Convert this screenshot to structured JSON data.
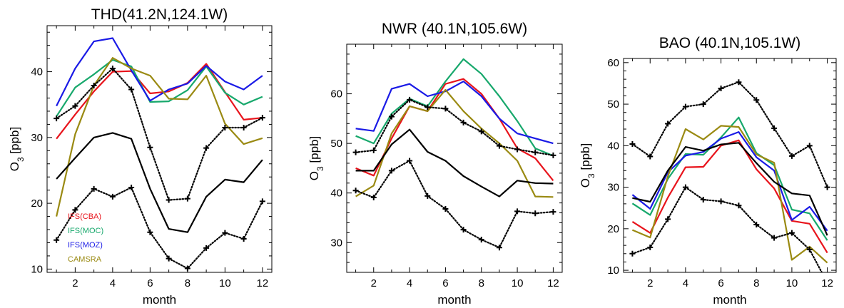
{
  "chart_data": [
    {
      "type": "line",
      "title": "THD(41.2N,124.1W)",
      "xlabel": "month",
      "ylabel": "O3 [ppb]",
      "xlim": [
        0.5,
        12.5
      ],
      "ylim": [
        9.5,
        47
      ],
      "xticks": [
        2,
        4,
        6,
        8,
        10,
        12
      ],
      "yticks": [
        10,
        20,
        30,
        40
      ],
      "x": [
        1,
        2,
        3,
        4,
        5,
        6,
        7,
        8,
        9,
        10,
        11,
        12
      ],
      "legend": [
        "IFS(CBA)",
        "IFS(MOC)",
        "IFS(MOZ)",
        "CAMSRA"
      ],
      "legend_position": "lower-left",
      "series": [
        {
          "name": "IFS(CBA)",
          "color": "#e8141c",
          "style": "solid",
          "values": [
            29.8,
            33.5,
            37,
            40,
            40.1,
            36.7,
            37,
            38.3,
            41.2,
            36.9,
            32.7,
            33
          ]
        },
        {
          "name": "IFS(MOC)",
          "color": "#17a86c",
          "style": "solid",
          "values": [
            33.2,
            37.6,
            39.6,
            41.8,
            40.8,
            35.4,
            35.5,
            37.2,
            40.8,
            36.8,
            35,
            36.2
          ]
        },
        {
          "name": "IFS(MOZ)",
          "color": "#1a1ae6",
          "style": "solid",
          "values": [
            34.8,
            40.5,
            44.6,
            45.1,
            40.2,
            35.6,
            37.3,
            38.2,
            40.9,
            38.5,
            37.3,
            39.4
          ]
        },
        {
          "name": "CAMSRA",
          "color": "#9a8a12",
          "style": "solid",
          "values": [
            18,
            30.5,
            37.9,
            42.1,
            40.5,
            39.4,
            35.9,
            35.8,
            39.4,
            32.1,
            29,
            29.9
          ]
        },
        {
          "color": "#000000",
          "style": "solid",
          "values": [
            23.7,
            26.9,
            30,
            30.7,
            29.8,
            22.2,
            16.1,
            15.6,
            21,
            23.6,
            23.2,
            26.6
          ]
        },
        {
          "color": "#000000",
          "style": "dotted",
          "marker": "plus",
          "values": [
            32.9,
            34.8,
            37.9,
            40.5,
            37.3,
            28.5,
            20.5,
            20.7,
            28.4,
            31.5,
            31.5,
            33
          ]
        },
        {
          "color": "#000000",
          "style": "dotted",
          "marker": "plus",
          "values": [
            14.4,
            19,
            22.2,
            21,
            22.4,
            15.6,
            11.6,
            10.1,
            13.2,
            15.5,
            14.6,
            20.3
          ]
        }
      ]
    },
    {
      "type": "line",
      "title": "NWR (40.1N,105.6W)",
      "xlabel": "month",
      "ylabel": "O3 [ppb]",
      "xlim": [
        0.5,
        12.5
      ],
      "ylim": [
        24,
        70
      ],
      "xticks": [
        2,
        4,
        6,
        8,
        10,
        12
      ],
      "yticks": [
        30,
        40,
        50,
        60
      ],
      "x": [
        1,
        2,
        3,
        4,
        5,
        6,
        7,
        8,
        9,
        10,
        11,
        12
      ],
      "series": [
        {
          "name": "IFS(CBA)",
          "color": "#e8141c",
          "style": "solid",
          "values": [
            45,
            43.5,
            51,
            57.5,
            56.5,
            62,
            63,
            60,
            55,
            49,
            47,
            42.5
          ]
        },
        {
          "name": "IFS(MOC)",
          "color": "#17a86c",
          "style": "solid",
          "values": [
            51.5,
            50,
            56,
            59,
            57.5,
            62.5,
            67,
            64,
            59.5,
            54.5,
            49,
            47.5
          ]
        },
        {
          "name": "IFS(MOZ)",
          "color": "#1a1ae6",
          "style": "solid",
          "values": [
            53,
            52.5,
            61,
            62,
            59.5,
            60.5,
            62.5,
            59.5,
            55,
            52,
            51,
            50
          ]
        },
        {
          "name": "CAMSRA",
          "color": "#9a8a12",
          "style": "solid",
          "values": [
            39.3,
            41.5,
            52,
            57.5,
            56.5,
            60.8,
            56.5,
            53,
            50,
            46.5,
            39.3,
            39.2
          ]
        },
        {
          "color": "#000000",
          "style": "solid",
          "values": [
            44.5,
            44.5,
            49.8,
            52.8,
            48.3,
            46.5,
            43.4,
            41.3,
            39.3,
            42.5,
            42,
            41.9
          ]
        },
        {
          "color": "#000000",
          "style": "dotted",
          "marker": "plus",
          "values": [
            48.2,
            48.6,
            55.4,
            58.8,
            57.3,
            57,
            54.2,
            52.4,
            49.5,
            48.8,
            48.2,
            47.6
          ]
        },
        {
          "color": "#000000",
          "style": "dotted",
          "marker": "plus",
          "values": [
            40.5,
            39.1,
            44.5,
            46.5,
            39.4,
            36.8,
            32.6,
            30.6,
            29,
            36.3,
            35.9,
            36.2
          ]
        }
      ]
    },
    {
      "type": "line",
      "title": "BAO (40.1N,105.1W)",
      "xlabel": "month",
      "ylabel": "O3 [ppb]",
      "xlim": [
        0.5,
        12.5
      ],
      "ylim": [
        9.5,
        61
      ],
      "xticks": [
        2,
        4,
        6,
        8,
        10,
        12
      ],
      "yticks": [
        10,
        20,
        30,
        40,
        50,
        60
      ],
      "x": [
        1,
        2,
        3,
        4,
        5,
        6,
        7,
        8,
        9,
        10,
        11,
        12
      ],
      "series": [
        {
          "name": "IFS(CBA)",
          "color": "#e8141c",
          "style": "solid",
          "values": [
            21.7,
            19,
            27.5,
            34.8,
            34.9,
            40,
            41.3,
            34.3,
            29.7,
            21.9,
            21.2,
            14.2
          ]
        },
        {
          "name": "IFS(MOC)",
          "color": "#17a86c",
          "style": "solid",
          "values": [
            26.1,
            23.3,
            32,
            38,
            37.8,
            42,
            46.8,
            38.2,
            35.3,
            24.6,
            23.7,
            17.2
          ]
        },
        {
          "name": "IFS(MOZ)",
          "color": "#1a1ae6",
          "style": "solid",
          "values": [
            28.2,
            24.8,
            33.6,
            37.6,
            38.5,
            41.7,
            43.3,
            37.2,
            34,
            22.1,
            25.3,
            19.5
          ]
        },
        {
          "name": "CAMSRA",
          "color": "#9a8a12",
          "style": "solid",
          "values": [
            19.7,
            17.9,
            32.6,
            44,
            41.5,
            44.8,
            44.5,
            37.9,
            35.9,
            12.5,
            15.7,
            11.8
          ]
        },
        {
          "color": "#000000",
          "style": "solid",
          "values": [
            27.4,
            26.5,
            34,
            39.7,
            38.8,
            40.3,
            40.7,
            35.8,
            31.3,
            28.5,
            28,
            18.4
          ]
        },
        {
          "color": "#000000",
          "style": "dotted",
          "marker": "plus",
          "values": [
            40.4,
            37.4,
            45.3,
            49.4,
            50,
            53.8,
            55.3,
            51,
            44.2,
            37.5,
            40,
            30
          ]
        },
        {
          "color": "#000000",
          "style": "dotted",
          "marker": "plus",
          "values": [
            14,
            15.5,
            22.3,
            30,
            27,
            26.6,
            25.6,
            21,
            17.8,
            19,
            15,
            7
          ]
        }
      ]
    }
  ]
}
